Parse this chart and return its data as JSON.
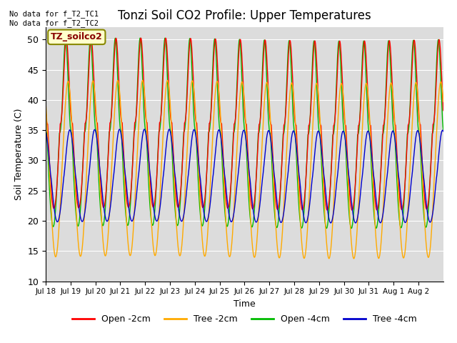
{
  "title": "Tonzi Soil CO2 Profile: Upper Temperatures",
  "xlabel": "Time",
  "ylabel": "Soil Temperature (C)",
  "ylim": [
    10,
    52
  ],
  "yticks": [
    10,
    15,
    20,
    25,
    30,
    35,
    40,
    45,
    50
  ],
  "annotation_text": "No data for f_T2_TC1\nNo data for f_T2_TC2",
  "legend_label_box": "TZ_soilco2",
  "legend_entries": [
    "Open -2cm",
    "Tree -2cm",
    "Open -4cm",
    "Tree -4cm"
  ],
  "legend_colors": [
    "#ff0000",
    "#ffaa00",
    "#00bb00",
    "#0000cc"
  ],
  "colors": {
    "open_2cm": "#ff0000",
    "tree_2cm": "#ffaa00",
    "open_4cm": "#00bb00",
    "tree_4cm": "#0000cc"
  },
  "background_color": "#dcdcdc",
  "tick_labels": [
    "Jul 18",
    "Jul 19",
    "Jul 20",
    "Jul 21",
    "Jul 22",
    "Jul 23",
    "Jul 24",
    "Jul 25",
    "Jul 26",
    "Jul 27",
    "Jul 28",
    "Jul 29",
    "Jul 30",
    "Jul 31",
    "Aug 1",
    "Aug 2"
  ],
  "n_days": 16,
  "points_per_day": 480
}
